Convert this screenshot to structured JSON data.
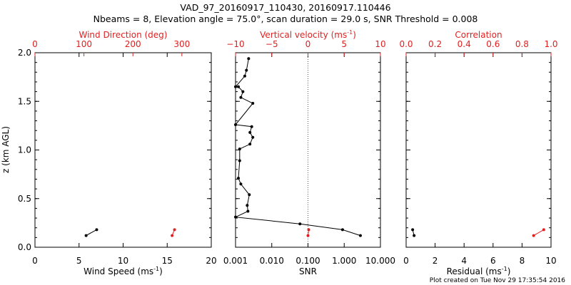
{
  "title": {
    "line1": "VAD_97_20160917_110430, 20160917.110446",
    "line2": "Nbeams = 8, Elevation angle = 75.0°, scan duration = 29.0 s, SNR Threshold = 0.008"
  },
  "footer": "Plot created on Tue Nov 29 17:35:54 2016",
  "colors": {
    "primary": "#000000",
    "secondary": "#e02020"
  },
  "chart_data": [
    {
      "type": "line",
      "name": "wind",
      "ylabel": "z (km AGL)",
      "ylim": [
        0,
        2.0
      ],
      "yticks": [
        "0.0",
        "0.5",
        "1.0",
        "1.5",
        "2.0"
      ],
      "yvalues": [
        0,
        0.5,
        1.0,
        1.5,
        2.0
      ],
      "bottom_axis": {
        "label": "Wind Speed (ms",
        "label_sup": "-1",
        "label_end": ")",
        "range": [
          0,
          20
        ],
        "ticks": [
          "0",
          "5",
          "10",
          "15",
          "20"
        ],
        "tick_values": [
          0,
          5,
          10,
          15,
          20
        ]
      },
      "top_axis": {
        "label": "Wind Direction (deg)",
        "range": [
          0,
          360
        ],
        "ticks": [
          "0",
          "100",
          "200",
          "300"
        ],
        "tick_values": [
          0,
          100,
          200,
          300
        ]
      },
      "series": [
        {
          "name": "Wind Speed",
          "axis": "bottom",
          "color": "#000000",
          "points": [
            [
              5.8,
              0.12
            ],
            [
              7.0,
              0.18
            ]
          ]
        },
        {
          "name": "Wind Direction",
          "axis": "top",
          "color": "#e02020",
          "points": [
            [
              280,
              0.12
            ],
            [
              285,
              0.18
            ]
          ]
        }
      ]
    },
    {
      "type": "line",
      "name": "snr",
      "ylim": [
        0,
        2.0
      ],
      "bottom_axis": {
        "label": "SNR",
        "scale": "log",
        "range": [
          0.001,
          10
        ],
        "ticks": [
          "0.001",
          "0.010",
          "0.100",
          "1.000",
          "10.000"
        ],
        "tick_values": [
          0.001,
          0.01,
          0.1,
          1,
          10
        ]
      },
      "top_axis": {
        "label": "Vertical velocity (ms",
        "label_sup": "-1",
        "label_end": ")",
        "range": [
          -10,
          10
        ],
        "ticks": [
          "−10",
          "−5",
          "0",
          "5",
          "10"
        ],
        "tick_values": [
          -10,
          -5,
          0,
          5,
          10
        ],
        "zero_line": 0
      },
      "series": [
        {
          "name": "SNR",
          "axis": "bottom",
          "color": "#000000",
          "points": [
            [
              2.8,
              0.12
            ],
            [
              0.9,
              0.18
            ],
            [
              0.06,
              0.24
            ],
            [
              0.001,
              0.31
            ],
            [
              0.0022,
              0.37
            ],
            [
              0.0021,
              0.43
            ],
            [
              0.0024,
              0.54
            ],
            [
              0.0014,
              0.65
            ],
            [
              0.0012,
              0.71
            ],
            [
              0.0013,
              0.89
            ],
            [
              0.0013,
              1.01
            ],
            [
              0.0025,
              1.06
            ],
            [
              0.003,
              1.13
            ],
            [
              0.0025,
              1.18
            ],
            [
              0.0028,
              1.24
            ],
            [
              0.001,
              1.26
            ],
            [
              0.003,
              1.48
            ],
            [
              0.0014,
              1.54
            ],
            [
              0.0016,
              1.6
            ],
            [
              0.0012,
              1.65
            ],
            [
              0.001,
              1.65
            ],
            [
              0.0018,
              1.76
            ],
            [
              0.002,
              1.82
            ],
            [
              0.0023,
              1.94
            ]
          ]
        },
        {
          "name": "Vertical velocity",
          "axis": "top",
          "color": "#e02020",
          "points": [
            [
              0.0,
              0.12
            ],
            [
              0.1,
              0.18
            ]
          ]
        }
      ]
    },
    {
      "type": "line",
      "name": "residual",
      "ylim": [
        0,
        2.0
      ],
      "bottom_axis": {
        "label": "Residual (ms",
        "label_sup": "-1",
        "label_end": ")",
        "range": [
          0,
          10
        ],
        "ticks": [
          "0",
          "2",
          "4",
          "6",
          "8",
          "10"
        ],
        "tick_values": [
          0,
          2,
          4,
          6,
          8,
          10
        ]
      },
      "top_axis": {
        "label": "Correlation",
        "range": [
          0,
          1.0
        ],
        "ticks": [
          "0.0",
          "0.2",
          "0.4",
          "0.6",
          "0.8",
          "1.0"
        ],
        "tick_values": [
          0,
          0.2,
          0.4,
          0.6,
          0.8,
          1.0
        ]
      },
      "series": [
        {
          "name": "Residual",
          "axis": "bottom",
          "color": "#000000",
          "points": [
            [
              0.55,
              0.12
            ],
            [
              0.45,
              0.18
            ]
          ]
        },
        {
          "name": "Correlation",
          "axis": "top",
          "color": "#e02020",
          "points": [
            [
              0.88,
              0.12
            ],
            [
              0.95,
              0.18
            ]
          ]
        }
      ]
    }
  ]
}
